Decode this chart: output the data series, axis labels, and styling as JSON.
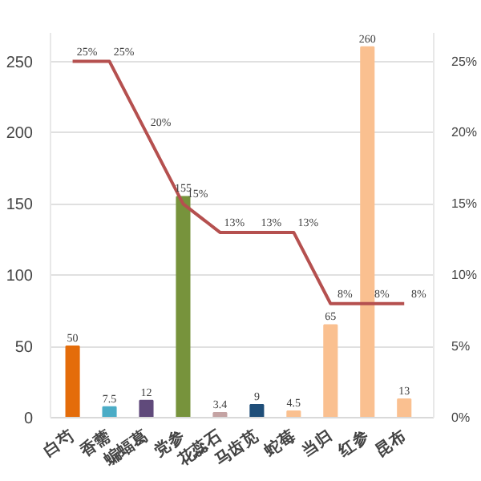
{
  "chart_data": {
    "type": "bar",
    "categories": [
      "白芍",
      "香薷",
      "蝙蝠葛",
      "党参",
      "花蕊石",
      "马齿苋",
      "蛇莓",
      "当归",
      "红参",
      "昆布"
    ],
    "series": [
      {
        "colors": [
          "#e46c0a",
          "#4bacc6",
          "#604a7b",
          "#77933c",
          "#c4a3a3",
          "#1f4e79",
          "#fac090",
          "#fac090",
          "#fac090",
          "#fac090"
        ],
        "values": [
          50,
          7.5,
          12,
          155,
          3.4,
          9,
          4.5,
          65,
          260,
          13
        ],
        "value_labels": [
          "50",
          "7.5",
          "12",
          "155",
          "3.4",
          "9",
          "4.5",
          "65",
          "260",
          "13"
        ]
      },
      {
        "type": "line",
        "axis": "y2",
        "color": "#b5504f",
        "values": [
          25,
          25,
          20,
          15,
          13,
          13,
          13,
          8,
          8,
          8
        ],
        "value_labels": [
          "25%",
          "25%",
          "20%",
          "15%",
          "13%",
          "13%",
          "13%",
          "8%",
          "8%",
          "8%"
        ]
      }
    ],
    "ylim": [
      0,
      270
    ],
    "yticks": [
      0,
      50,
      100,
      150,
      200,
      250
    ],
    "y2lim": [
      0,
      27
    ],
    "y2ticks": [
      {
        "value": 0,
        "label": "0%"
      },
      {
        "value": 5,
        "label": "5%"
      },
      {
        "value": 10,
        "label": "10%"
      },
      {
        "value": 15,
        "label": "15%"
      },
      {
        "value": 20,
        "label": "20%"
      },
      {
        "value": 25,
        "label": "25%"
      }
    ],
    "grid": "y",
    "marker": "none",
    "line_style": "solid"
  }
}
